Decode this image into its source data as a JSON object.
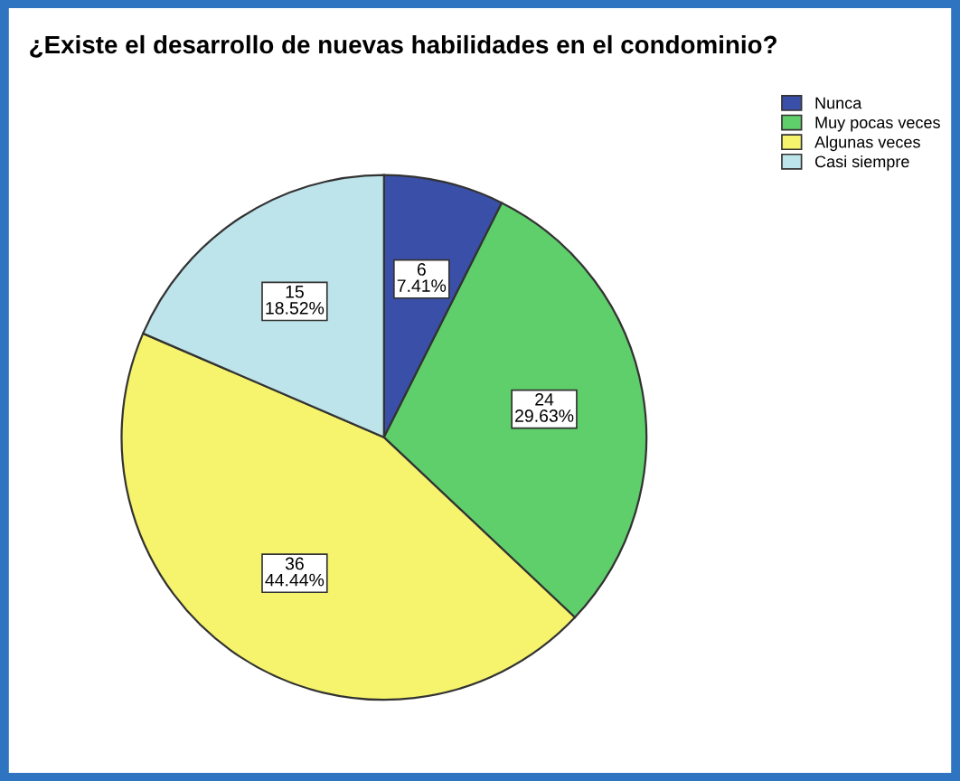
{
  "chart_data": {
    "type": "pie",
    "title": "¿Existe el desarrollo de nuevas habilidades en el condominio?",
    "categories": [
      "Nunca",
      "Muy pocas veces",
      "Algunas veces",
      "Casi siempre"
    ],
    "values": [
      6,
      24,
      36,
      15
    ],
    "value_labels": [
      "6\n7.41%",
      "24\n29.63%",
      "36\n44.44%",
      "15\n18.52%"
    ],
    "colors": [
      "#3a4fa8",
      "#5fcf6b",
      "#f6f36c",
      "#bde4ea"
    ],
    "legend": "top right"
  }
}
